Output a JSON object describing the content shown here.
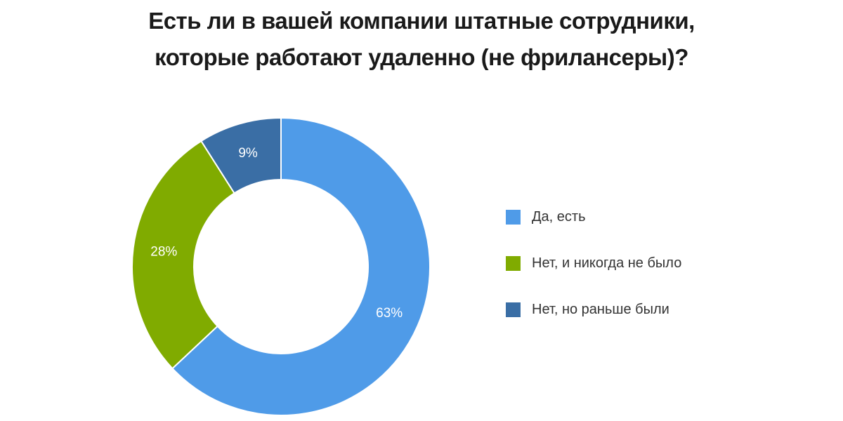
{
  "chart_data": {
    "type": "pie",
    "title": "Есть ли в вашей компании штатные сотрудники, которые работают удаленно (не фрилансеры)?",
    "title_lines": [
      "Есть ли в вашей компании штатные сотрудники,",
      "которые работают удаленно (не фрилансеры)?"
    ],
    "categories": [
      "Да, есть",
      "Нет, и никогда не было",
      "Нет, но раньше были"
    ],
    "values": [
      63,
      28,
      9
    ],
    "value_labels": [
      "63%",
      "28%",
      "9%"
    ],
    "colors": [
      "#4f9be8",
      "#80ab00",
      "#3a6ea5"
    ],
    "donut": true,
    "legend_position": "right"
  }
}
